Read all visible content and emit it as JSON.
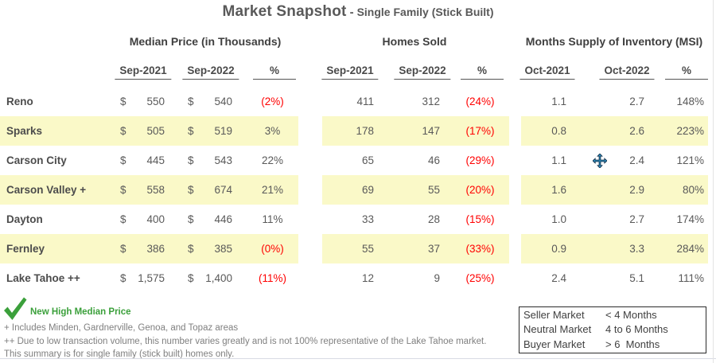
{
  "title": {
    "main": "Market Snapshot",
    "separator": "-",
    "sub": "Single Family (Stick Built)"
  },
  "labels": {
    "currency": "$"
  },
  "table": {
    "sections": [
      {
        "title": "Median Price (in Thousands)",
        "cols": [
          "Sep-2021",
          "Sep-2022",
          "%"
        ]
      },
      {
        "title": "Homes Sold",
        "cols": [
          "Sep-2021",
          "Sep-2022",
          "%"
        ]
      },
      {
        "title": "Months Supply of Inventory (MSI)",
        "cols": [
          "Oct-2021",
          "Oct-2022",
          "%"
        ]
      }
    ]
  },
  "rows": [
    {
      "label": "Reno",
      "highlight": false,
      "median_2021": "550",
      "median_2022": "540",
      "median_pct": "(2%)",
      "sold_2021": "411",
      "sold_2022": "312",
      "sold_pct": "(24%)",
      "msi_2021": "1.1",
      "msi_2022": "2.7",
      "msi_pct": "148%"
    },
    {
      "label": "Sparks",
      "highlight": true,
      "median_2021": "505",
      "median_2022": "519",
      "median_pct": "3%",
      "sold_2021": "178",
      "sold_2022": "147",
      "sold_pct": "(17%)",
      "msi_2021": "0.8",
      "msi_2022": "2.6",
      "msi_pct": "223%"
    },
    {
      "label": "Carson City",
      "highlight": false,
      "median_2021": "445",
      "median_2022": "543",
      "median_pct": "22%",
      "sold_2021": "65",
      "sold_2022": "46",
      "sold_pct": "(29%)",
      "msi_2021": "1.1",
      "msi_2022": "2.4",
      "msi_pct": "121%"
    },
    {
      "label": "Carson Valley +",
      "highlight": true,
      "median_2021": "558",
      "median_2022": "674",
      "median_pct": "21%",
      "sold_2021": "69",
      "sold_2022": "55",
      "sold_pct": "(20%)",
      "msi_2021": "1.6",
      "msi_2022": "2.9",
      "msi_pct": "80%"
    },
    {
      "label": "Dayton",
      "highlight": false,
      "median_2021": "400",
      "median_2022": "446",
      "median_pct": "11%",
      "sold_2021": "33",
      "sold_2022": "28",
      "sold_pct": "(15%)",
      "msi_2021": "1.0",
      "msi_2022": "2.7",
      "msi_pct": "174%"
    },
    {
      "label": "Fernley",
      "highlight": true,
      "median_2021": "386",
      "median_2022": "385",
      "median_pct": "(0%)",
      "sold_2021": "55",
      "sold_2022": "37",
      "sold_pct": "(33%)",
      "msi_2021": "0.9",
      "msi_2022": "3.3",
      "msi_pct": "284%"
    },
    {
      "label": "Lake Tahoe ++",
      "highlight": false,
      "median_2021": "1,575",
      "median_2022": "1,400",
      "median_pct": "(11%)",
      "sold_2021": "12",
      "sold_2022": "9",
      "sold_pct": "(25%)",
      "msi_2021": "2.4",
      "msi_2022": "5.1",
      "msi_pct": "111%"
    }
  ],
  "footer": {
    "new_high_label": "New High Median Price",
    "notes": [
      "+ Includes Minden, Gardnerville, Genoa, and Topaz areas",
      "++ Due to low transaction volume, this number varies greatly and is not 100% representative of the Lake Tahoe market.",
      "This summary is for single family (stick built) homes only."
    ],
    "legend": [
      {
        "label": "Seller Market",
        "value": "< 4 Months"
      },
      {
        "label": "Neutral Market",
        "value": "4 to 6 Months"
      },
      {
        "label": "Buyer Market",
        "value": "> 6  Months"
      }
    ]
  },
  "colors": {
    "highlight": "#faf9c8",
    "negative": "#ff0000",
    "green": "#3ba03b",
    "cursor_blue": "#2e93c6",
    "text": "#595959"
  }
}
